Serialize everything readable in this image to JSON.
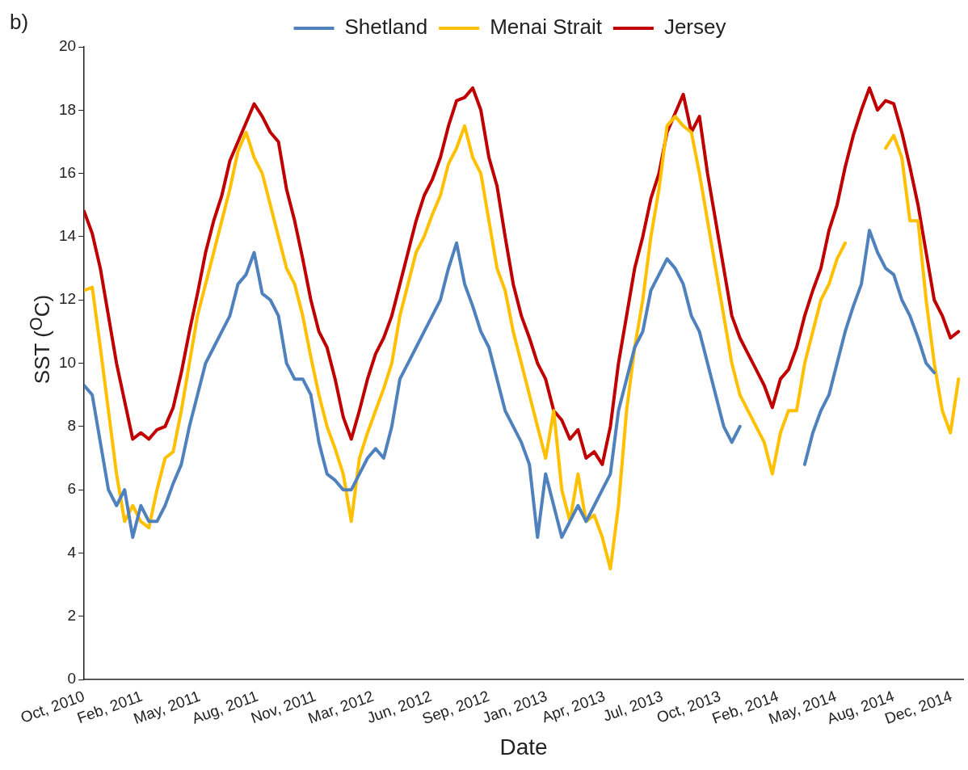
{
  "chart_data": {
    "type": "line",
    "title": "b)",
    "xlabel": "Date",
    "ylabel": "SST ($^{O}$C)",
    "x": [
      "2010-10-25",
      "2010-11-08",
      "2010-11-22",
      "2010-12-06",
      "2010-12-20",
      "2011-01-03",
      "2011-01-17",
      "2011-01-31",
      "2011-02-14",
      "2011-02-28",
      "2011-03-14",
      "2011-03-28",
      "2011-04-11",
      "2011-04-25",
      "2011-05-09",
      "2011-05-23",
      "2011-06-06",
      "2011-06-20",
      "2011-07-04",
      "2011-07-18",
      "2011-08-01",
      "2011-08-15",
      "2011-08-29",
      "2011-09-12",
      "2011-09-26",
      "2011-10-10",
      "2011-10-24",
      "2011-11-07",
      "2011-11-21",
      "2011-12-05",
      "2011-12-19",
      "2012-01-02",
      "2012-01-16",
      "2012-01-30",
      "2012-02-13",
      "2012-02-27",
      "2012-03-12",
      "2012-03-26",
      "2012-04-09",
      "2012-04-23",
      "2012-05-07",
      "2012-05-21",
      "2012-06-04",
      "2012-06-18",
      "2012-07-02",
      "2012-07-16",
      "2012-07-30",
      "2012-08-13",
      "2012-08-27",
      "2012-09-10",
      "2012-09-24",
      "2012-10-08",
      "2012-10-22",
      "2012-11-05",
      "2012-11-19",
      "2012-12-03",
      "2012-12-17",
      "2012-12-31",
      "2013-01-14",
      "2013-01-28",
      "2013-02-11",
      "2013-02-25",
      "2013-03-11",
      "2013-03-25",
      "2013-04-08",
      "2013-04-22",
      "2013-05-06",
      "2013-05-20",
      "2013-06-03",
      "2013-06-17",
      "2013-07-01",
      "2013-07-15",
      "2013-07-29",
      "2013-08-12",
      "2013-08-26",
      "2013-09-09",
      "2013-09-23",
      "2013-10-07",
      "2013-10-21",
      "2013-11-04",
      "2013-11-18",
      "2013-12-02",
      "2013-12-16",
      "2013-12-30",
      "2014-01-13",
      "2014-01-27",
      "2014-02-10",
      "2014-02-24",
      "2014-03-10",
      "2014-03-24",
      "2014-04-07",
      "2014-04-21",
      "2014-05-05",
      "2014-05-19",
      "2014-06-02",
      "2014-06-16",
      "2014-06-30",
      "2014-07-14",
      "2014-07-28",
      "2014-08-11",
      "2014-08-25",
      "2014-09-08",
      "2014-09-22",
      "2014-10-06",
      "2014-10-20",
      "2014-11-03",
      "2014-11-17",
      "2014-12-01",
      "2014-12-15"
    ],
    "series": [
      {
        "name": "Shetland",
        "color": "#4f81bd",
        "values": [
          9.3,
          9.0,
          7.5,
          6.0,
          5.5,
          6.0,
          4.5,
          5.5,
          5.0,
          5.0,
          5.5,
          6.2,
          6.8,
          8.0,
          9.0,
          10.0,
          10.5,
          11.0,
          11.5,
          12.5,
          12.8,
          13.5,
          12.2,
          12.0,
          11.5,
          10.0,
          9.5,
          9.5,
          9.0,
          7.5,
          6.5,
          6.3,
          6.0,
          6.0,
          6.5,
          7.0,
          7.3,
          7.0,
          8.0,
          9.5,
          10.0,
          10.5,
          11.0,
          11.5,
          12.0,
          13.0,
          13.8,
          12.5,
          11.8,
          11.0,
          10.5,
          9.5,
          8.5,
          8.0,
          7.5,
          6.8,
          4.5,
          6.5,
          5.5,
          4.5,
          5.0,
          5.5,
          5.0,
          5.5,
          6.0,
          6.5,
          8.5,
          9.5,
          10.5,
          11.0,
          12.3,
          12.8,
          13.3,
          13.0,
          12.5,
          11.5,
          11.0,
          10.0,
          9.0,
          8.0,
          7.5,
          8.0,
          null,
          null,
          null,
          null,
          null,
          null,
          null,
          6.8,
          7.8,
          8.5,
          9.0,
          10.0,
          11.0,
          11.8,
          12.5,
          14.2,
          13.5,
          13.0,
          12.8,
          12.0,
          11.5,
          10.8,
          10.0,
          9.7,
          null,
          null,
          null
        ]
      },
      {
        "name": "Menai Strait",
        "color": "#ffc000",
        "values": [
          12.3,
          12.4,
          10.5,
          8.5,
          6.5,
          5.0,
          5.5,
          5.0,
          4.8,
          6.0,
          7.0,
          7.2,
          8.5,
          10.0,
          11.5,
          12.5,
          13.5,
          14.5,
          15.5,
          16.7,
          17.3,
          16.5,
          16.0,
          15.0,
          14.0,
          13.0,
          12.5,
          11.5,
          10.2,
          9.0,
          8.0,
          7.3,
          6.5,
          5.0,
          7.0,
          7.8,
          8.5,
          9.2,
          10.0,
          11.5,
          12.5,
          13.5,
          14.0,
          14.7,
          15.3,
          16.3,
          16.8,
          17.5,
          16.5,
          16.0,
          14.5,
          13.0,
          12.3,
          11.0,
          10.0,
          9.0,
          8.0,
          7.0,
          8.5,
          6.0,
          5.0,
          6.5,
          5.0,
          5.2,
          4.5,
          3.5,
          5.5,
          8.5,
          10.5,
          12.0,
          14.0,
          15.5,
          17.5,
          17.8,
          17.5,
          17.3,
          16.0,
          14.5,
          13.0,
          11.5,
          10.0,
          9.0,
          8.5,
          8.0,
          7.5,
          6.5,
          7.8,
          8.5,
          8.5,
          10.0,
          11.0,
          12.0,
          12.5,
          13.3,
          13.8,
          null,
          null,
          null,
          null,
          16.8,
          17.2,
          16.5,
          14.5,
          14.5,
          12.0,
          10.0,
          8.5,
          7.8,
          9.5
        ]
      },
      {
        "name": "Jersey",
        "color": "#c00000",
        "values": [
          14.8,
          14.1,
          13.0,
          11.5,
          10.0,
          8.8,
          7.6,
          7.8,
          7.6,
          7.9,
          8.0,
          8.6,
          9.7,
          11.0,
          12.2,
          13.5,
          14.5,
          15.3,
          16.4,
          17.0,
          17.6,
          18.2,
          17.8,
          17.3,
          17.0,
          15.5,
          14.5,
          13.3,
          12.0,
          11.0,
          10.5,
          9.5,
          8.3,
          7.6,
          8.5,
          9.5,
          10.3,
          10.8,
          11.5,
          12.5,
          13.5,
          14.5,
          15.3,
          15.8,
          16.5,
          17.5,
          18.3,
          18.4,
          18.7,
          18.0,
          16.5,
          15.6,
          14.0,
          12.5,
          11.5,
          10.8,
          10.0,
          9.5,
          8.5,
          8.2,
          7.6,
          7.9,
          7.0,
          7.2,
          6.8,
          8.0,
          10.0,
          11.5,
          13.0,
          14.0,
          15.2,
          16.0,
          17.3,
          17.9,
          18.5,
          17.3,
          17.8,
          16.0,
          14.5,
          13.0,
          11.5,
          10.8,
          10.3,
          9.8,
          9.3,
          8.6,
          9.5,
          9.8,
          10.5,
          11.5,
          12.3,
          13.0,
          14.2,
          15.0,
          16.2,
          17.2,
          18.0,
          18.7,
          18.0,
          18.3,
          18.2,
          17.3,
          16.2,
          15.0,
          13.5,
          12.0,
          11.5,
          10.8,
          11.0
        ]
      }
    ],
    "xlim": [
      "2010-10-25",
      "2014-12-23"
    ],
    "xticks": [
      {
        "value": "2010-10-25",
        "label": "Oct, 2010"
      },
      {
        "value": "2011-02-02",
        "label": "Feb, 2011"
      },
      {
        "value": "2011-05-13",
        "label": "May, 2011"
      },
      {
        "value": "2011-08-21",
        "label": "Aug, 2011"
      },
      {
        "value": "2011-11-29",
        "label": "Nov, 2011"
      },
      {
        "value": "2012-03-08",
        "label": "Mar, 2012"
      },
      {
        "value": "2012-06-16",
        "label": "Jun, 2012"
      },
      {
        "value": "2012-09-24",
        "label": "Sep, 2012"
      },
      {
        "value": "2013-01-02",
        "label": "Jan, 2013"
      },
      {
        "value": "2013-04-12",
        "label": "Apr, 2013"
      },
      {
        "value": "2013-07-21",
        "label": "Jul, 2013"
      },
      {
        "value": "2013-10-29",
        "label": "Oct, 2013"
      },
      {
        "value": "2014-02-06",
        "label": "Feb, 2014"
      },
      {
        "value": "2014-05-17",
        "label": "May, 2014"
      },
      {
        "value": "2014-08-25",
        "label": "Aug, 2014"
      },
      {
        "value": "2014-12-03",
        "label": "Dec, 2014"
      }
    ],
    "ylim": [
      0,
      20
    ],
    "yticks": [
      0,
      2,
      4,
      6,
      8,
      10,
      12,
      14,
      16,
      18,
      20
    ],
    "grid": false,
    "legend": "top",
    "marker": "none",
    "line_style": "solid"
  }
}
